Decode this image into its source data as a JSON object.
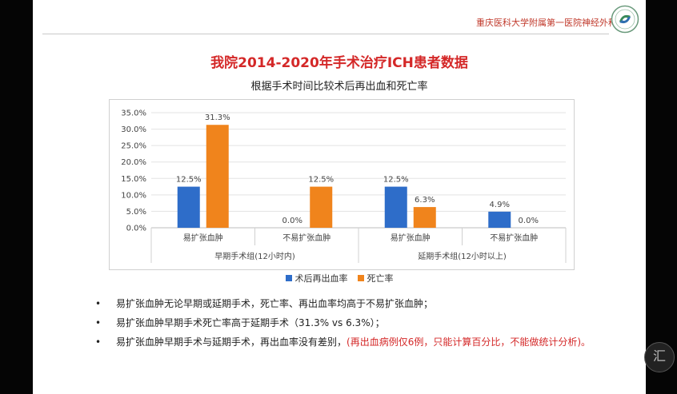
{
  "header": {
    "hospital": "重庆医科大学附属第一医院神经外科"
  },
  "title": "我院2014-2020年手术治疗ICH患者数据",
  "subtitle": "根据手术时间比较术后再出血和死亡率",
  "chart_data": {
    "type": "bar",
    "categories": [
      "易扩张血肿",
      "不易扩张血肿",
      "易扩张血肿",
      "不易扩张血肿"
    ],
    "groups": [
      {
        "label": "早期手术组(12小时内)",
        "span": [
          0,
          1
        ]
      },
      {
        "label": "延期手术组(12小时以上)",
        "span": [
          2,
          3
        ]
      }
    ],
    "series": [
      {
        "name": "术后再出血率",
        "color": "#2e6dc9",
        "values": [
          12.5,
          0.0,
          12.5,
          4.9
        ],
        "labels": [
          "12.5%",
          "0.0%",
          "12.5%",
          "4.9%"
        ]
      },
      {
        "name": "死亡率",
        "color": "#f0841c",
        "values": [
          31.3,
          12.5,
          6.3,
          0.0
        ],
        "labels": [
          "31.3%",
          "12.5%",
          "6.3%",
          "0.0%"
        ]
      }
    ],
    "yticks": [
      "0.0%",
      "5.0%",
      "10.0%",
      "15.0%",
      "20.0%",
      "25.0%",
      "30.0%",
      "35.0%"
    ],
    "ylim": [
      0,
      35
    ]
  },
  "bullets": [
    {
      "marker": "•",
      "text": "易扩张血肿无论早期或延期手术，死亡率、再出血率均高于不易扩张血肿；",
      "red": ""
    },
    {
      "marker": "•",
      "text": "易扩张血肿早期手术死亡率高于延期手术（31.3% vs 6.3%）；",
      "red": ""
    },
    {
      "marker": "•",
      "text": "易扩张血肿早期手术与延期手术，再出血率没有差别，",
      "red": "(再出血病例仅6例，只能计算百分比，不能做统计分析)。"
    }
  ],
  "watermark": "汇"
}
